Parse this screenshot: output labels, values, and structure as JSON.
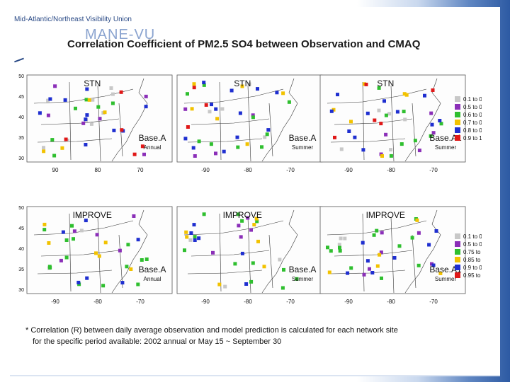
{
  "header": {
    "org": "Mid-Atlantic/Northeast Visibility Union",
    "logo": "MANE-VU",
    "title": "Correlation Coefficient of PM2.5 SO4 between Observation and CMAQ"
  },
  "chart_data": [
    {
      "type": "scatter",
      "network": "STN",
      "case": "Base.A",
      "period": "Annual",
      "xticks": [
        "90",
        "80",
        "70"
      ],
      "yticks": [
        "50",
        "45",
        "40",
        "35",
        "30"
      ],
      "counts": [
        9,
        6,
        6,
        4,
        10,
        5
      ]
    },
    {
      "type": "scatter",
      "network": "STN",
      "case": "Base.A",
      "period": "Summer",
      "xticks": [
        "-90",
        "-80",
        "-70"
      ],
      "yticks": [],
      "counts": [
        4,
        4,
        9,
        6,
        12,
        3
      ]
    },
    {
      "type": "scatter",
      "network": "STN",
      "case": "Base.A1",
      "period": "Summer",
      "xticks": [
        "-90",
        "-80",
        "-70"
      ],
      "yticks": [],
      "counts": [
        5,
        5,
        8,
        6,
        11,
        5
      ]
    },
    {
      "type": "scatter",
      "network": "IMPROVE",
      "case": "Base.A",
      "period": "Annual",
      "xticks": [
        "-90",
        "-80",
        "-70"
      ],
      "yticks": [
        "50",
        "45",
        "40",
        "35",
        "30"
      ],
      "counts": [
        3,
        5,
        14,
        6,
        6,
        0
      ]
    },
    {
      "type": "scatter",
      "network": "IMPROVE",
      "case": "Base.A",
      "period": "Summer",
      "xticks": [
        "-90",
        "-80",
        "-70"
      ],
      "yticks": [],
      "counts": [
        3,
        5,
        12,
        7,
        6,
        0
      ]
    },
    {
      "type": "scatter",
      "network": "IMPROVE",
      "case": "Base.A1",
      "period": "Summer",
      "xticks": [
        "-90",
        "-80",
        "-70"
      ],
      "yticks": [],
      "counts": [
        3,
        6,
        12,
        5,
        8,
        0
      ]
    }
  ],
  "legends": {
    "stn": {
      "labels": [
        "0.1 to 0.5",
        "0.5 to 0.6",
        "0.6 to 0.7",
        "0.7 to 0.8",
        "0.8 to 0.9",
        "0.9 to 1"
      ],
      "colors": [
        "#c8c8c8",
        "#8b2fb8",
        "#2fbf2f",
        "#f2c200",
        "#1f2fd0",
        "#e01818"
      ]
    },
    "improve": {
      "labels": [
        "0.1 to 0.5",
        "0.5 to 0.75",
        "0.75 to 0.85",
        "0.85 to 0.9",
        "0.9 to 0.95",
        "0.95 to 1"
      ],
      "colors": [
        "#c8c8c8",
        "#8b2fb8",
        "#2fbf2f",
        "#f2c200",
        "#1f2fd0",
        "#e01818"
      ]
    }
  },
  "note": {
    "line1": "* Correlation (R) between daily average observation and model prediction is calculated for each network site",
    "line2": "for the specific period available:  2002 annual or May 15 ~ September 30"
  }
}
